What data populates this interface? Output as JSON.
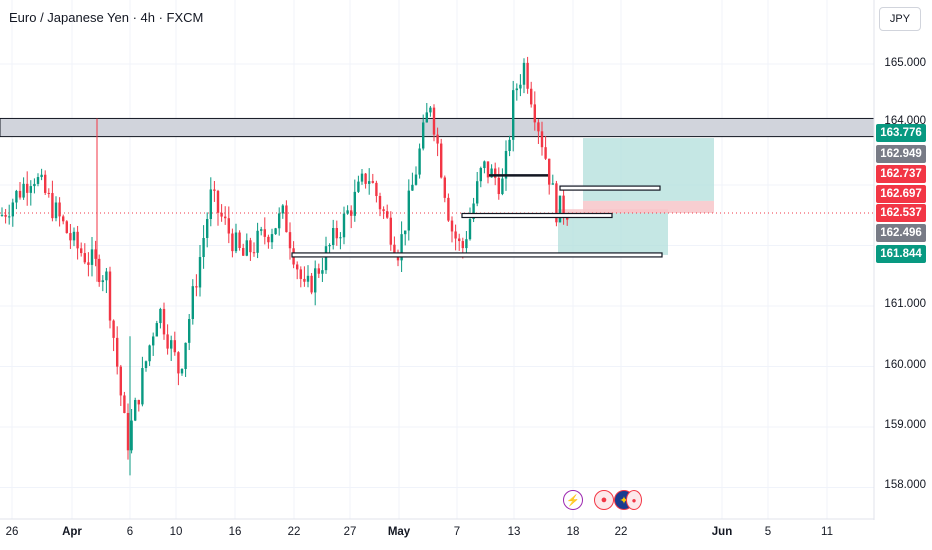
{
  "chart": {
    "title": "Euro / Japanese Yen · 4h · FXCM",
    "currency_button": "JPY"
  },
  "colors": {
    "up": "#089981",
    "down": "#f23645",
    "target_zone": "#b2dfdb",
    "stop_zone": "#f7c5c9",
    "resistance_zone": "#d1d4dc"
  },
  "price_axis": {
    "ticks": [
      "165.000",
      "164.000",
      "161.000",
      "160.000",
      "159.000",
      "158.000"
    ]
  },
  "price_tags": [
    {
      "value": "163.776",
      "color": "#089981"
    },
    {
      "value": "162.949",
      "color": "#787b86"
    },
    {
      "value": "162.737",
      "color": "#f23645"
    },
    {
      "value": "162.697",
      "color": "#f23645"
    },
    {
      "value": "162.537",
      "color": "#f23645"
    },
    {
      "value": "162.496",
      "color": "#787b86"
    },
    {
      "value": "161.844",
      "color": "#089981"
    }
  ],
  "time_axis": {
    "labels": [
      "26",
      "Apr",
      "6",
      "10",
      "16",
      "22",
      "27",
      "May",
      "7",
      "13",
      "18",
      "22",
      "Jun",
      "5",
      "11"
    ]
  },
  "events": [
    {
      "icon": "lightning-icon",
      "glyph": "⚡"
    },
    {
      "icon": "economic-event-icon",
      "glyph": "●"
    },
    {
      "icon": "eu-flag-icon",
      "glyph": "✦"
    }
  ],
  "chart_data": {
    "type": "candlestick",
    "symbol": "Euro / Japanese Yen",
    "interval": "4h",
    "source": "FXCM",
    "y_range": [
      157.7,
      165.4
    ],
    "key_prices": [
      163.776,
      162.949,
      162.737,
      162.697,
      162.537,
      162.496,
      161.844
    ],
    "resistance_zone": [
      163.8,
      164.1
    ],
    "path_waypoints": [
      {
        "date": "Mar 25",
        "close": 162.5
      },
      {
        "date": "Mar 28",
        "close": 163.2
      },
      {
        "date": "Apr 1",
        "close": 162.0
      },
      {
        "date": "Apr 4",
        "close": 161.5
      },
      {
        "date": "Apr 6",
        "close": 158.7
      },
      {
        "date": "Apr 9",
        "close": 161.0
      },
      {
        "date": "Apr 11",
        "close": 159.9
      },
      {
        "date": "Apr 14",
        "close": 162.8
      },
      {
        "date": "Apr 17",
        "close": 161.8
      },
      {
        "date": "Apr 21",
        "close": 162.5
      },
      {
        "date": "Apr 23",
        "close": 161.2
      },
      {
        "date": "Apr 27",
        "close": 162.5
      },
      {
        "date": "Apr 29",
        "close": 163.2
      },
      {
        "date": "May 2",
        "close": 161.9
      },
      {
        "date": "May 5",
        "close": 164.4
      },
      {
        "date": "May 7",
        "close": 162.3
      },
      {
        "date": "May 8",
        "close": 161.9
      },
      {
        "date": "May 10",
        "close": 163.3
      },
      {
        "date": "May 12",
        "close": 163.0
      },
      {
        "date": "May 13",
        "close": 164.5
      },
      {
        "date": "May 14",
        "close": 165.0
      },
      {
        "date": "May 16",
        "close": 163.5
      },
      {
        "date": "May 17",
        "close": 162.6
      }
    ]
  }
}
